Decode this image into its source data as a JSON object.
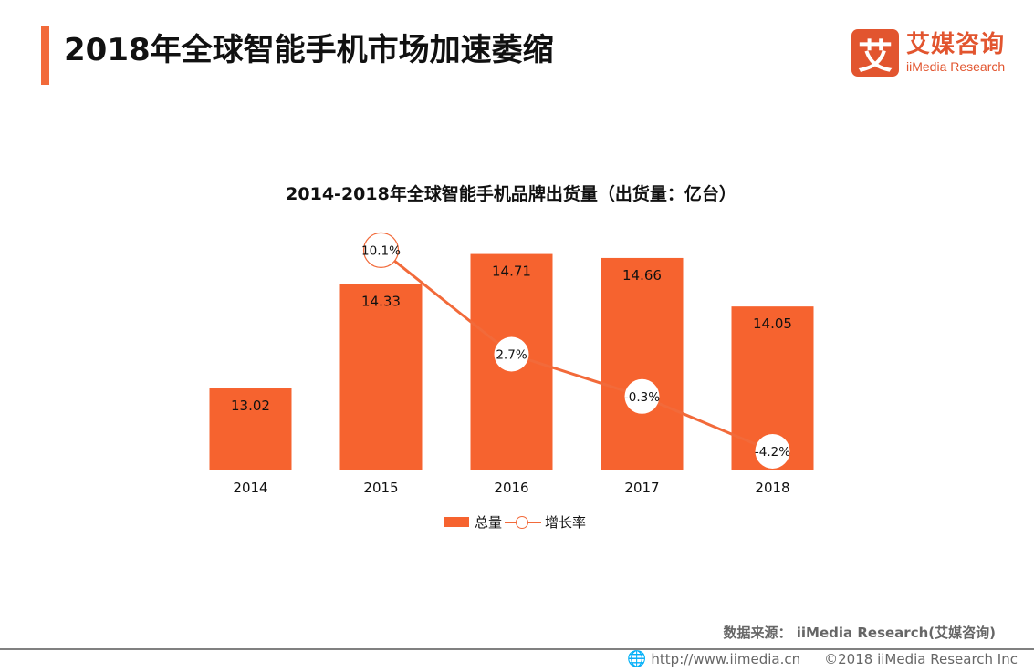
{
  "header": {
    "title": "2018年全球智能手机市场加速萎缩",
    "accent_color": "#f26a3a"
  },
  "logo": {
    "mark": "艾",
    "name_cn": "艾媒咨询",
    "name_en": "iiMedia Research",
    "color": "#e2552f"
  },
  "chart_data": {
    "type": "bar",
    "title": "2014-2018年全球智能手机品牌出货量（出货量：亿台）",
    "categories": [
      "2014",
      "2015",
      "2016",
      "2017",
      "2018"
    ],
    "series": [
      {
        "name": "总量",
        "type": "bar",
        "values": [
          13.02,
          14.33,
          14.71,
          14.66,
          14.05
        ],
        "labels": [
          "13.02",
          "14.33",
          "14.71",
          "14.66",
          "14.05"
        ],
        "color": "#f6632f"
      },
      {
        "name": "增长率",
        "type": "line",
        "values": [
          null,
          10.1,
          2.7,
          -0.3,
          -4.2
        ],
        "labels": [
          "",
          "10.1%",
          "2.7%",
          "-0.3%",
          "-4.2%"
        ],
        "unit": "%",
        "color": "#f26a3a"
      }
    ],
    "xlabel": "",
    "ylabel": "",
    "bar_axis_range": [
      12,
      14.9
    ],
    "line_axis_range": [
      -5.5,
      10.9
    ],
    "grid": false,
    "legend_position": "bottom-center"
  },
  "legend": {
    "bar_label": "总量",
    "line_label": "增长率"
  },
  "footer": {
    "source": "数据来源： iiMedia Research(艾媒咨询)",
    "url": "http://www.iimedia.cn",
    "copyright": "©2018  iiMedia Research  Inc",
    "globe_icon": "🌐"
  }
}
